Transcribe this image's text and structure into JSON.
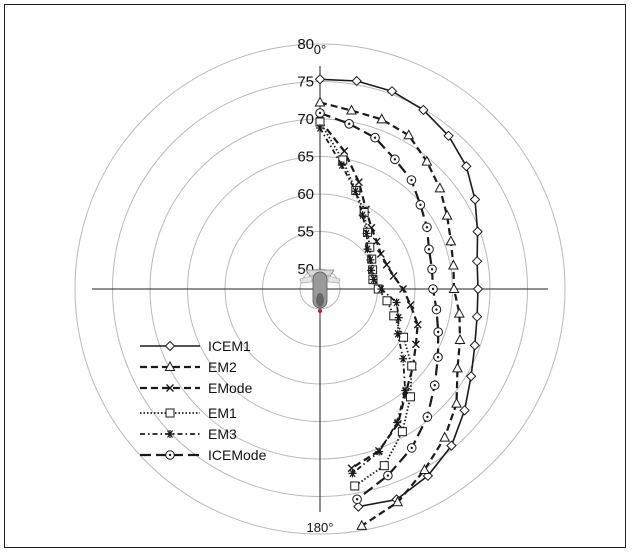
{
  "chart_data": {
    "type": "polar-line",
    "title": "",
    "angle_labels": {
      "top": "0°",
      "bottom": "180°"
    },
    "radial_axis": {
      "ticks": [
        "50",
        "55",
        "60",
        "65",
        "70",
        "75",
        "80"
      ],
      "tick_values": [
        50,
        55,
        60,
        65,
        70,
        75,
        80
      ],
      "range": [
        50,
        80
      ]
    },
    "grid": true,
    "angle_unit": "degrees",
    "legend_position": "lower-left",
    "series": [
      {
        "name": "ICEM1",
        "style": "solid",
        "marker": "diamond",
        "points": [
          [
            0,
            75.3
          ],
          [
            10,
            75.5
          ],
          [
            20,
            75.4
          ],
          [
            30,
            74.9
          ],
          [
            40,
            74
          ],
          [
            50,
            72.8
          ],
          [
            60,
            71.2
          ],
          [
            70,
            69.7
          ],
          [
            80,
            68.6
          ],
          [
            90,
            68.4
          ],
          [
            100,
            68.6
          ],
          [
            110,
            69.3
          ],
          [
            120,
            70.6
          ],
          [
            130,
            72.5
          ],
          [
            140,
            74.6
          ],
          [
            150,
            76.1
          ],
          [
            160,
            77.2
          ],
          [
            170,
            76.8
          ]
        ]
      },
      {
        "name": "EM2",
        "style": "dashed",
        "marker": "triangle",
        "points": [
          [
            0,
            72.2
          ],
          [
            10,
            71.5
          ],
          [
            20,
            71.4
          ],
          [
            30,
            71
          ],
          [
            40,
            69.5
          ],
          [
            50,
            68.2
          ],
          [
            60,
            66.9
          ],
          [
            70,
            65.9
          ],
          [
            80,
            65.4
          ],
          [
            90,
            65.2
          ],
          [
            100,
            66.2
          ],
          [
            110,
            67.2
          ],
          [
            120,
            68.5
          ],
          [
            130,
            71.1
          ],
          [
            140,
            73.2
          ],
          [
            150,
            75.2
          ],
          [
            160,
            77.6
          ],
          [
            170,
            79.4
          ]
        ]
      },
      {
        "name": "EMode",
        "style": "dashed",
        "marker": "cross",
        "points": [
          [
            0,
            69.8
          ],
          [
            10,
            66
          ],
          [
            20,
            62.5
          ],
          [
            30,
            59.6
          ],
          [
            40,
            58
          ],
          [
            50,
            57.2
          ],
          [
            60,
            56.7
          ],
          [
            70,
            56.8
          ],
          [
            80,
            57.3
          ],
          [
            90,
            58.4
          ],
          [
            100,
            59.6
          ],
          [
            110,
            61.2
          ],
          [
            120,
            62.1
          ],
          [
            130,
            63.5
          ],
          [
            140,
            65.2
          ],
          [
            150,
            68.1
          ],
          [
            160,
            70.3
          ],
          [
            170,
            71.6
          ]
        ]
      },
      {
        "name": "EM1",
        "style": "dotted",
        "marker": "square",
        "points": [
          [
            0,
            69.6
          ],
          [
            10,
            64.8
          ],
          [
            20,
            61.3
          ],
          [
            30,
            59.1
          ],
          [
            40,
            57.2
          ],
          [
            50,
            56
          ],
          [
            60,
            55.3
          ],
          [
            70,
            54.8
          ],
          [
            80,
            54.5
          ],
          [
            90,
            55.1
          ],
          [
            100,
            56.4
          ],
          [
            110,
            57.8
          ],
          [
            120,
            60.2
          ],
          [
            130,
            63.3
          ],
          [
            140,
            66.1
          ],
          [
            150,
            69.3
          ],
          [
            160,
            72.4
          ],
          [
            170,
            74
          ]
        ]
      },
      {
        "name": "EM3",
        "style": "dash-dot",
        "marker": "asterisk",
        "points": [
          [
            0,
            68.8
          ],
          [
            10,
            64.1
          ],
          [
            20,
            61.2
          ],
          [
            30,
            58.7
          ],
          [
            40,
            57
          ],
          [
            50,
            55.6
          ],
          [
            60,
            55.1
          ],
          [
            70,
            54.6
          ],
          [
            80,
            54.6
          ],
          [
            90,
            55.5
          ],
          [
            100,
            57.7
          ],
          [
            110,
            58.5
          ],
          [
            120,
            59.3
          ],
          [
            130,
            61.8
          ],
          [
            140,
            65
          ],
          [
            150,
            67.9
          ],
          [
            160,
            70.4
          ],
          [
            170,
            72.3
          ]
        ]
      },
      {
        "name": "ICEMode",
        "style": "long-dash",
        "marker": "circle",
        "points": [
          [
            0,
            70.8
          ],
          [
            10,
            69.7
          ],
          [
            20,
            68.8
          ],
          [
            30,
            67.3
          ],
          [
            40,
            66.3
          ],
          [
            50,
            64.8
          ],
          [
            60,
            63.8
          ],
          [
            70,
            62.8
          ],
          [
            80,
            62.5
          ],
          [
            90,
            62.4
          ],
          [
            100,
            63.1
          ],
          [
            110,
            64.1
          ],
          [
            120,
            65.5
          ],
          [
            130,
            67.3
          ],
          [
            140,
            69.6
          ],
          [
            150,
            71.8
          ],
          [
            160,
            73.8
          ],
          [
            170,
            75.8
          ]
        ]
      }
    ]
  },
  "legend": {
    "items": [
      {
        "label": "ICEM1"
      },
      {
        "label": "EM2"
      },
      {
        "label": "EMode"
      },
      {
        "label": "EM1"
      },
      {
        "label": "EM3"
      },
      {
        "label": "ICEMode"
      }
    ]
  },
  "colors": {
    "line": "#1a1a1a",
    "grid": "#b8b8b8",
    "marker_fill": "#ffffff"
  },
  "icons": {
    "center": "vehicle-top-view-icon"
  }
}
